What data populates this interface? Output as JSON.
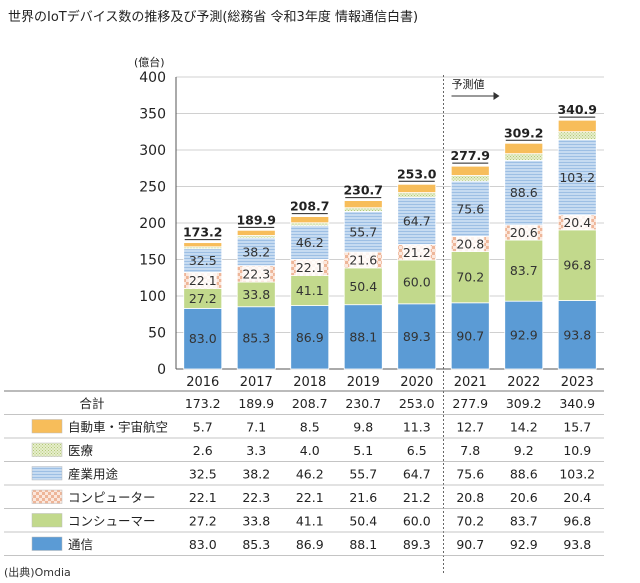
{
  "title": "世界のIoTデバイス数の推移及び予測(総務省 令和3年度 情報通信白書)",
  "source": "(出典)Omdia",
  "chart_data": {
    "type": "bar",
    "stacked": true,
    "ylabel": "(億台)",
    "ylim": [
      0,
      400
    ],
    "yticks": [
      0,
      50,
      100,
      150,
      200,
      250,
      300,
      350,
      400
    ],
    "categories": [
      "2016",
      "2017",
      "2018",
      "2019",
      "2020",
      "2021",
      "2022",
      "2023"
    ],
    "forecast_label": "予測値",
    "forecast_start_index": 5,
    "totals_label": "合計",
    "totals": [
      173.2,
      189.9,
      208.7,
      230.7,
      253.0,
      277.9,
      309.2,
      340.9
    ],
    "totals_text": [
      "173.2",
      "189.9",
      "208.7",
      "230.7",
      "253.0",
      "277.9",
      "309.2",
      "340.9"
    ],
    "series": [
      {
        "name": "通信",
        "color": "#5b9bd5",
        "pattern": "solid",
        "values": [
          83.0,
          85.3,
          86.9,
          88.1,
          89.3,
          90.7,
          92.9,
          93.8
        ],
        "labels": [
          "83.0",
          "85.3",
          "86.9",
          "88.1",
          "89.3",
          "90.7",
          "92.9",
          "93.8"
        ]
      },
      {
        "name": "コンシューマー",
        "color": "#c2d98c",
        "pattern": "solid",
        "values": [
          27.2,
          33.8,
          41.1,
          50.4,
          60.0,
          70.2,
          83.7,
          96.8
        ],
        "labels": [
          "27.2",
          "33.8",
          "41.1",
          "50.4",
          "60.0",
          "70.2",
          "83.7",
          "96.8"
        ]
      },
      {
        "name": "コンピューター",
        "color": "#f2c7b2",
        "pattern": "check",
        "values": [
          22.1,
          22.3,
          22.1,
          21.6,
          21.2,
          20.8,
          20.6,
          20.4
        ],
        "labels": [
          "22.1",
          "22.3",
          "22.1",
          "21.6",
          "21.2",
          "20.8",
          "20.6",
          "20.4"
        ]
      },
      {
        "name": "産業用途",
        "color": "#bcd4ee",
        "pattern": "lines",
        "values": [
          32.5,
          38.2,
          46.2,
          55.7,
          64.7,
          75.6,
          88.6,
          103.2
        ],
        "labels": [
          "32.5",
          "38.2",
          "46.2",
          "55.7",
          "64.7",
          "75.6",
          "88.6",
          "103.2"
        ]
      },
      {
        "name": "医療",
        "color": "#dce8b8",
        "pattern": "dots",
        "values": [
          2.6,
          3.3,
          4.0,
          5.1,
          6.5,
          7.8,
          9.2,
          10.9
        ],
        "labels": [
          "2.6",
          "3.3",
          "4.0",
          "5.1",
          "6.5",
          "7.8",
          "9.2",
          "10.9"
        ]
      },
      {
        "name": "自動車・宇宙航空",
        "color": "#f7bd5a",
        "pattern": "solid",
        "values": [
          5.7,
          7.1,
          8.5,
          9.8,
          11.3,
          12.7,
          14.2,
          15.7
        ],
        "labels": [
          "5.7",
          "7.1",
          "8.5",
          "9.8",
          "11.3",
          "12.7",
          "14.2",
          "15.7"
        ]
      }
    ]
  }
}
